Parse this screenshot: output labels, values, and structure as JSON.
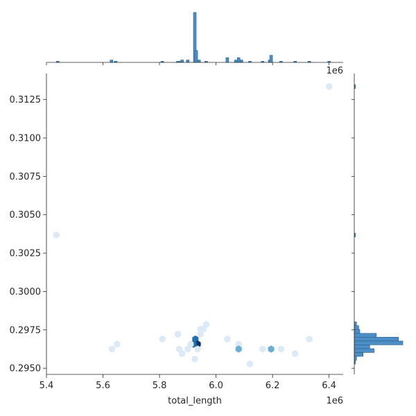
{
  "chart_data": {
    "type": "hexbin-joint",
    "xlabel": "total_length",
    "ylabel": "",
    "x_offset_label": "1e6",
    "top_offset_label": "1e6",
    "xlim": [
      5.4,
      6.45
    ],
    "ylim": [
      0.2946,
      0.3142
    ],
    "x_ticks": [
      5.4,
      5.6,
      5.8,
      6.0,
      6.2,
      6.4
    ],
    "x_tick_labels": [
      "5.4",
      "5.6",
      "5.8",
      "6.0",
      "6.2",
      "6.4"
    ],
    "y_ticks": [
      0.295,
      0.2975,
      0.3,
      0.3025,
      0.305,
      0.3075,
      0.31,
      0.3125
    ],
    "y_tick_labels": [
      "0.2950",
      "0.2975",
      "0.3000",
      "0.3025",
      "0.3050",
      "0.3075",
      "0.3100",
      "0.3125"
    ],
    "hexbins": [
      {
        "x": 6.4,
        "y": 0.31335,
        "count": 1
      },
      {
        "x": 5.435,
        "y": 0.30368,
        "count": 1
      },
      {
        "x": 5.965,
        "y": 0.29785,
        "count": 1
      },
      {
        "x": 5.955,
        "y": 0.29755,
        "count": 1
      },
      {
        "x": 5.945,
        "y": 0.29755,
        "count": 1
      },
      {
        "x": 5.865,
        "y": 0.29722,
        "count": 1
      },
      {
        "x": 5.945,
        "y": 0.29722,
        "count": 1
      },
      {
        "x": 5.81,
        "y": 0.2969,
        "count": 2
      },
      {
        "x": 5.927,
        "y": 0.2969,
        "count": 5
      },
      {
        "x": 6.04,
        "y": 0.2969,
        "count": 2
      },
      {
        "x": 6.33,
        "y": 0.2969,
        "count": 1
      },
      {
        "x": 5.65,
        "y": 0.29657,
        "count": 1
      },
      {
        "x": 5.935,
        "y": 0.29657,
        "count": 8
      },
      {
        "x": 5.92,
        "y": 0.29657,
        "count": 4
      },
      {
        "x": 5.91,
        "y": 0.29657,
        "count": 2
      },
      {
        "x": 6.08,
        "y": 0.29657,
        "count": 1
      },
      {
        "x": 5.632,
        "y": 0.29625,
        "count": 2
      },
      {
        "x": 5.87,
        "y": 0.29625,
        "count": 1
      },
      {
        "x": 5.9,
        "y": 0.29625,
        "count": 2
      },
      {
        "x": 5.935,
        "y": 0.29625,
        "count": 1
      },
      {
        "x": 6.08,
        "y": 0.29625,
        "count": 3
      },
      {
        "x": 6.165,
        "y": 0.29625,
        "count": 1
      },
      {
        "x": 6.195,
        "y": 0.29625,
        "count": 3
      },
      {
        "x": 6.23,
        "y": 0.29625,
        "count": 1
      },
      {
        "x": 5.88,
        "y": 0.29595,
        "count": 1
      },
      {
        "x": 6.28,
        "y": 0.29595,
        "count": 1
      },
      {
        "x": 5.925,
        "y": 0.2956,
        "count": 1
      },
      {
        "x": 6.12,
        "y": 0.29528,
        "count": 1
      }
    ],
    "top_histogram": {
      "bins": [
        {
          "x": 5.44,
          "count": 1
        },
        {
          "x": 5.63,
          "count": 2
        },
        {
          "x": 5.645,
          "count": 1
        },
        {
          "x": 5.81,
          "count": 1
        },
        {
          "x": 5.865,
          "count": 1
        },
        {
          "x": 5.875,
          "count": 1
        },
        {
          "x": 5.88,
          "count": 2
        },
        {
          "x": 5.9,
          "count": 2
        },
        {
          "x": 5.925,
          "count": 42
        },
        {
          "x": 5.93,
          "count": 10
        },
        {
          "x": 5.94,
          "count": 2
        },
        {
          "x": 5.965,
          "count": 1
        },
        {
          "x": 6.04,
          "count": 4
        },
        {
          "x": 6.07,
          "count": 2
        },
        {
          "x": 6.08,
          "count": 4
        },
        {
          "x": 6.09,
          "count": 2
        },
        {
          "x": 6.12,
          "count": 1
        },
        {
          "x": 6.165,
          "count": 1
        },
        {
          "x": 6.19,
          "count": 2
        },
        {
          "x": 6.195,
          "count": 6
        },
        {
          "x": 6.23,
          "count": 1
        },
        {
          "x": 6.28,
          "count": 1
        },
        {
          "x": 6.33,
          "count": 1
        },
        {
          "x": 6.4,
          "count": 1
        }
      ]
    },
    "right_histogram": {
      "bins": [
        {
          "y": 0.31335,
          "count": 1
        },
        {
          "y": 0.30368,
          "count": 1
        },
        {
          "y": 0.2979,
          "count": 2
        },
        {
          "y": 0.29765,
          "count": 4
        },
        {
          "y": 0.2974,
          "count": 5
        },
        {
          "y": 0.29715,
          "count": 20
        },
        {
          "y": 0.2969,
          "count": 40
        },
        {
          "y": 0.29665,
          "count": 44
        },
        {
          "y": 0.2964,
          "count": 14
        },
        {
          "y": 0.29615,
          "count": 18
        },
        {
          "y": 0.2959,
          "count": 8
        },
        {
          "y": 0.29565,
          "count": 2
        },
        {
          "y": 0.2954,
          "count": 1
        }
      ]
    },
    "colors": {
      "hex_light": "#dce9f6",
      "hex_mid": "#6aaed6",
      "hex_dark": "#1f6fb4",
      "hex_max": "#08306b",
      "hist_fill": "#4c8ec5",
      "hist_edge": "#2a5d8c",
      "axis": "#262626"
    }
  }
}
